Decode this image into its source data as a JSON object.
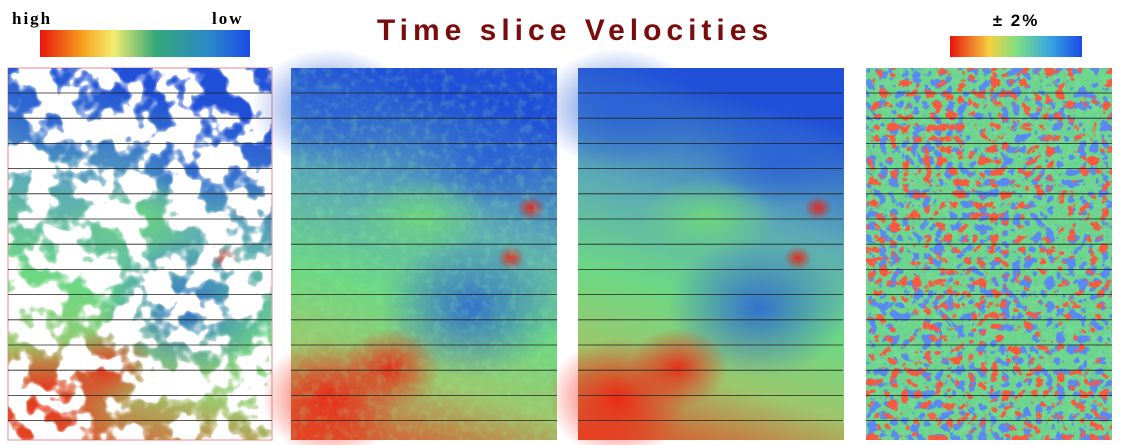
{
  "title": "Time slice Velocities",
  "legend_left": {
    "high": "high",
    "low": "low"
  },
  "legend_right": {
    "label": "± 2%"
  }
}
